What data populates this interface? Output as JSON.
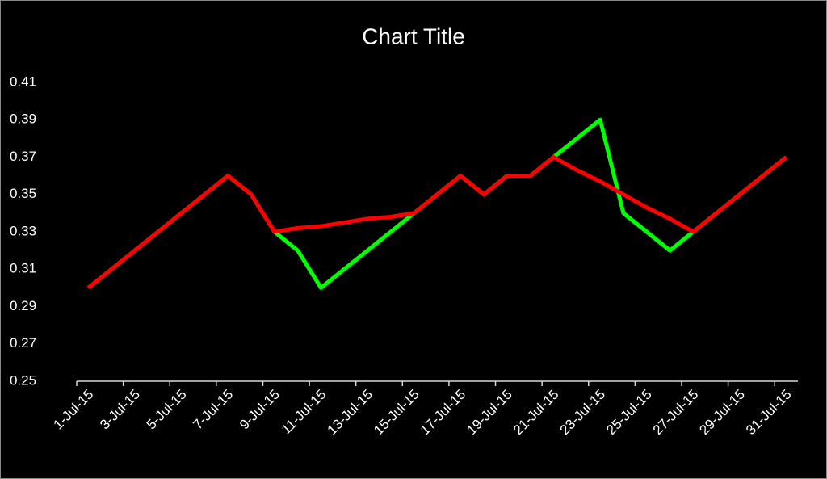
{
  "chart_data": {
    "type": "line",
    "title": "Chart Title",
    "categories": [
      "1-Jul-15",
      null,
      "3-Jul-15",
      null,
      "5-Jul-15",
      null,
      "7-Jul-15",
      null,
      "9-Jul-15",
      null,
      "11-Jul-15",
      null,
      "13-Jul-15",
      null,
      "15-Jul-15",
      null,
      "17-Jul-15",
      null,
      "19-Jul-15",
      null,
      "21-Jul-15",
      null,
      "23-Jul-15",
      null,
      "25-Jul-15",
      null,
      "27-Jul-15",
      null,
      "29-Jul-15",
      null,
      "31-Jul-15"
    ],
    "series": [
      {
        "color": "#00ff00",
        "values": [
          0.3,
          0.31,
          0.32,
          0.33,
          0.34,
          0.35,
          0.36,
          0.35,
          0.33,
          0.32,
          0.3,
          0.31,
          0.32,
          0.33,
          0.34,
          0.35,
          0.36,
          0.35,
          0.36,
          0.36,
          0.37,
          0.38,
          0.39,
          0.34,
          0.33,
          0.32,
          0.33,
          0.34,
          0.35,
          0.36,
          0.37
        ]
      },
      {
        "color": "#ff0000",
        "values": [
          0.3,
          0.31,
          0.32,
          0.33,
          0.34,
          0.35,
          0.36,
          0.35,
          0.33,
          0.332,
          0.333,
          0.335,
          0.337,
          0.338,
          0.34,
          0.35,
          0.36,
          0.35,
          0.36,
          0.36,
          0.37,
          0.363,
          0.357,
          0.35,
          0.343,
          0.337,
          0.33,
          0.34,
          0.35,
          0.36,
          0.37
        ]
      }
    ],
    "ylim": [
      0.25,
      0.41
    ],
    "yticks": [
      0.25,
      0.27,
      0.29,
      0.31,
      0.33,
      0.35,
      0.37,
      0.39,
      0.41
    ]
  }
}
